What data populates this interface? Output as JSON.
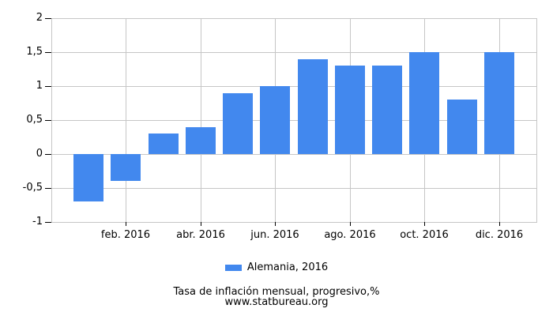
{
  "chart_data": {
    "type": "bar",
    "title": "Tasa de inflación mensual, progresivo,%",
    "source": "www.statbureau.org",
    "legend": "Alemania, 2016",
    "values": [
      -0.7,
      -0.4,
      0.3,
      0.4,
      0.9,
      1.0,
      1.4,
      1.3,
      1.3,
      1.5,
      0.8,
      1.5
    ],
    "num_bars": 12,
    "ylim": [
      -1,
      2
    ],
    "yticks": [
      {
        "value": 2,
        "label": "2"
      },
      {
        "value": 1.5,
        "label": "1,5"
      },
      {
        "value": 1,
        "label": "1"
      },
      {
        "value": 0.5,
        "label": "0,5"
      },
      {
        "value": 0,
        "label": "0"
      },
      {
        "value": -0.5,
        "label": "-0,5"
      },
      {
        "value": -1,
        "label": "-1"
      }
    ],
    "xticks": [
      {
        "pos": 2,
        "label": "feb. 2016"
      },
      {
        "pos": 4,
        "label": "abr. 2016"
      },
      {
        "pos": 6,
        "label": "jun. 2016"
      },
      {
        "pos": 8,
        "label": "ago. 2016"
      },
      {
        "pos": 10,
        "label": "oct. 2016"
      },
      {
        "pos": 12,
        "label": "dic. 2016"
      }
    ],
    "bar_color": "#4288ee",
    "grid_color": "#c6c6c6",
    "tick_color": "#000000",
    "grid": true,
    "legend_position": "bottom"
  }
}
